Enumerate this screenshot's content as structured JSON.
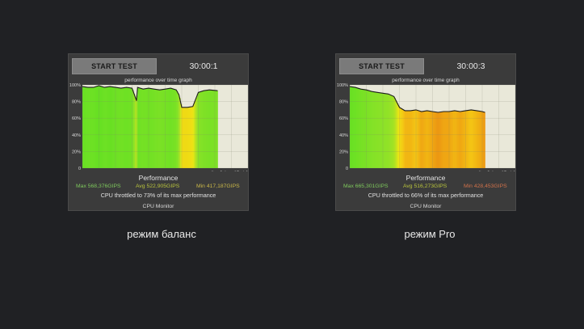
{
  "panels": [
    {
      "id": "balance",
      "start_label": "START TEST",
      "timer": "30:00:1",
      "graph_title": "performance over time graph",
      "y_ticks": [
        "100%",
        "80%",
        "60%",
        "40%",
        "20%",
        "0"
      ],
      "x_label": "time(interval 5min)",
      "performance_title": "Performance",
      "max_text": "Max 568,376GIPS",
      "avg_text": "Avg 522,905GIPS",
      "min_text": "Min 417,187GIPS",
      "throttle_text": "CPU throttled to 73% of its max performance",
      "monitor_label": "CPU Monitor",
      "mode_label": "режим баланс",
      "colors": {
        "max": "#7ec85c",
        "avg": "#b8c33c",
        "min": "#c9b748"
      }
    },
    {
      "id": "pro",
      "start_label": "START TEST",
      "timer": "30:00:3",
      "graph_title": "performance over time graph",
      "y_ticks": [
        "100%",
        "80%",
        "60%",
        "40%",
        "20%",
        "0"
      ],
      "x_label": "time(interval 5min)",
      "performance_title": "Performance",
      "max_text": "Max 665,301GIPS",
      "avg_text": "Avg 516,273GIPS",
      "min_text": "Min 428,453GIPS",
      "throttle_text": "CPU throttled to 66% of its max performance",
      "monitor_label": "CPU Monitor",
      "mode_label": "режим Pro",
      "colors": {
        "max": "#7ec85c",
        "avg": "#b8c33c",
        "min": "#d0714a"
      }
    }
  ],
  "chart_data": [
    {
      "type": "area",
      "title": "performance over time graph",
      "xlabel": "time(interval 5min)",
      "ylabel": "",
      "ylim": [
        0,
        100
      ],
      "y_ticks": [
        "100%",
        "80%",
        "60%",
        "40%",
        "20%",
        "0"
      ],
      "grid": true,
      "total_minutes": 30,
      "data_end_minute": 24.5,
      "x": [
        0,
        1,
        2,
        3,
        4,
        5,
        6,
        7,
        8,
        9,
        9.8,
        10,
        11,
        12,
        13,
        14,
        15,
        16,
        17,
        17.5,
        18,
        19,
        20,
        21,
        22,
        23,
        24.5
      ],
      "values": [
        98,
        97,
        97,
        99,
        97,
        98,
        97,
        96,
        97,
        96,
        81,
        97,
        95,
        96,
        95,
        94,
        95,
        96,
        94,
        88,
        73,
        73,
        74,
        91,
        93,
        94,
        93
      ]
    },
    {
      "type": "area",
      "title": "performance over time graph",
      "xlabel": "time(interval 5min)",
      "ylabel": "",
      "ylim": [
        0,
        100
      ],
      "y_ticks": [
        "100%",
        "80%",
        "60%",
        "40%",
        "20%",
        "0"
      ],
      "grid": true,
      "total_minutes": 30,
      "data_end_minute": 24.5,
      "x": [
        0,
        1,
        2,
        3,
        4,
        5,
        6,
        7,
        8,
        9,
        10,
        11,
        12,
        13,
        14,
        15,
        16,
        17,
        18,
        19,
        20,
        21,
        22,
        23,
        24,
        24.5
      ],
      "values": [
        98,
        97,
        95,
        94,
        92,
        91,
        90,
        89,
        86,
        73,
        69,
        69,
        70,
        68,
        69,
        68,
        67,
        68,
        68,
        69,
        68,
        69,
        70,
        69,
        68,
        67
      ]
    }
  ]
}
